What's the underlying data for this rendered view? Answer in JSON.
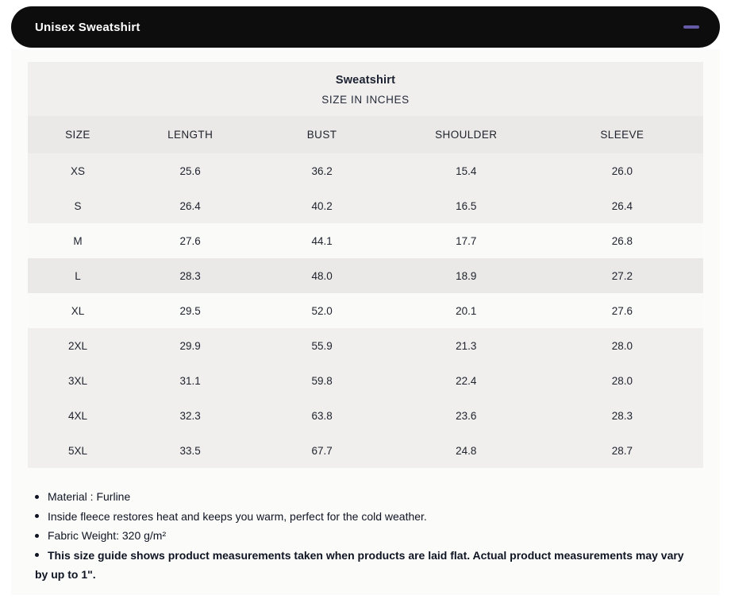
{
  "accordion": {
    "title": "Unisex Sweatshirt",
    "collapse_icon": "minus-icon",
    "bar_color": "#0d0d0d",
    "icon_color": "#655aa8"
  },
  "size_chart": {
    "title": "Sweatshirt",
    "subtitle": "SIZE IN INCHES",
    "columns": [
      "SIZE",
      "LENGTH",
      "BUST",
      "SHOULDER",
      "SLEEVE"
    ],
    "rows": [
      {
        "cells": [
          "XS",
          "25.6",
          "36.2",
          "15.4",
          "26.0"
        ],
        "shade": "base"
      },
      {
        "cells": [
          "S",
          "26.4",
          "40.2",
          "16.5",
          "26.4"
        ],
        "shade": "base"
      },
      {
        "cells": [
          "M",
          "27.6",
          "44.1",
          "17.7",
          "26.8"
        ],
        "shade": "light"
      },
      {
        "cells": [
          "L",
          "28.3",
          "48.0",
          "18.9",
          "27.2"
        ],
        "shade": "dark"
      },
      {
        "cells": [
          "XL",
          "29.5",
          "52.0",
          "20.1",
          "27.6"
        ],
        "shade": "light"
      },
      {
        "cells": [
          "2XL",
          "29.9",
          "55.9",
          "21.3",
          "28.0"
        ],
        "shade": "base"
      },
      {
        "cells": [
          "3XL",
          "31.1",
          "59.8",
          "22.4",
          "28.0"
        ],
        "shade": "base"
      },
      {
        "cells": [
          "4XL",
          "32.3",
          "63.8",
          "23.6",
          "28.3"
        ],
        "shade": "base"
      },
      {
        "cells": [
          "5XL",
          "33.5",
          "67.7",
          "24.8",
          "28.7"
        ],
        "shade": "base"
      }
    ]
  },
  "notes": [
    {
      "text": "Material : Furline",
      "bold": false
    },
    {
      "text": "Inside fleece restores heat and keeps you warm, perfect for the cold weather.",
      "bold": false
    },
    {
      "text": "Fabric Weight: 320 g/m²",
      "bold": false
    },
    {
      "text": "This size guide shows product measurements taken when products are laid flat. Actual product measurements may vary by up to 1\".",
      "bold": true
    }
  ]
}
